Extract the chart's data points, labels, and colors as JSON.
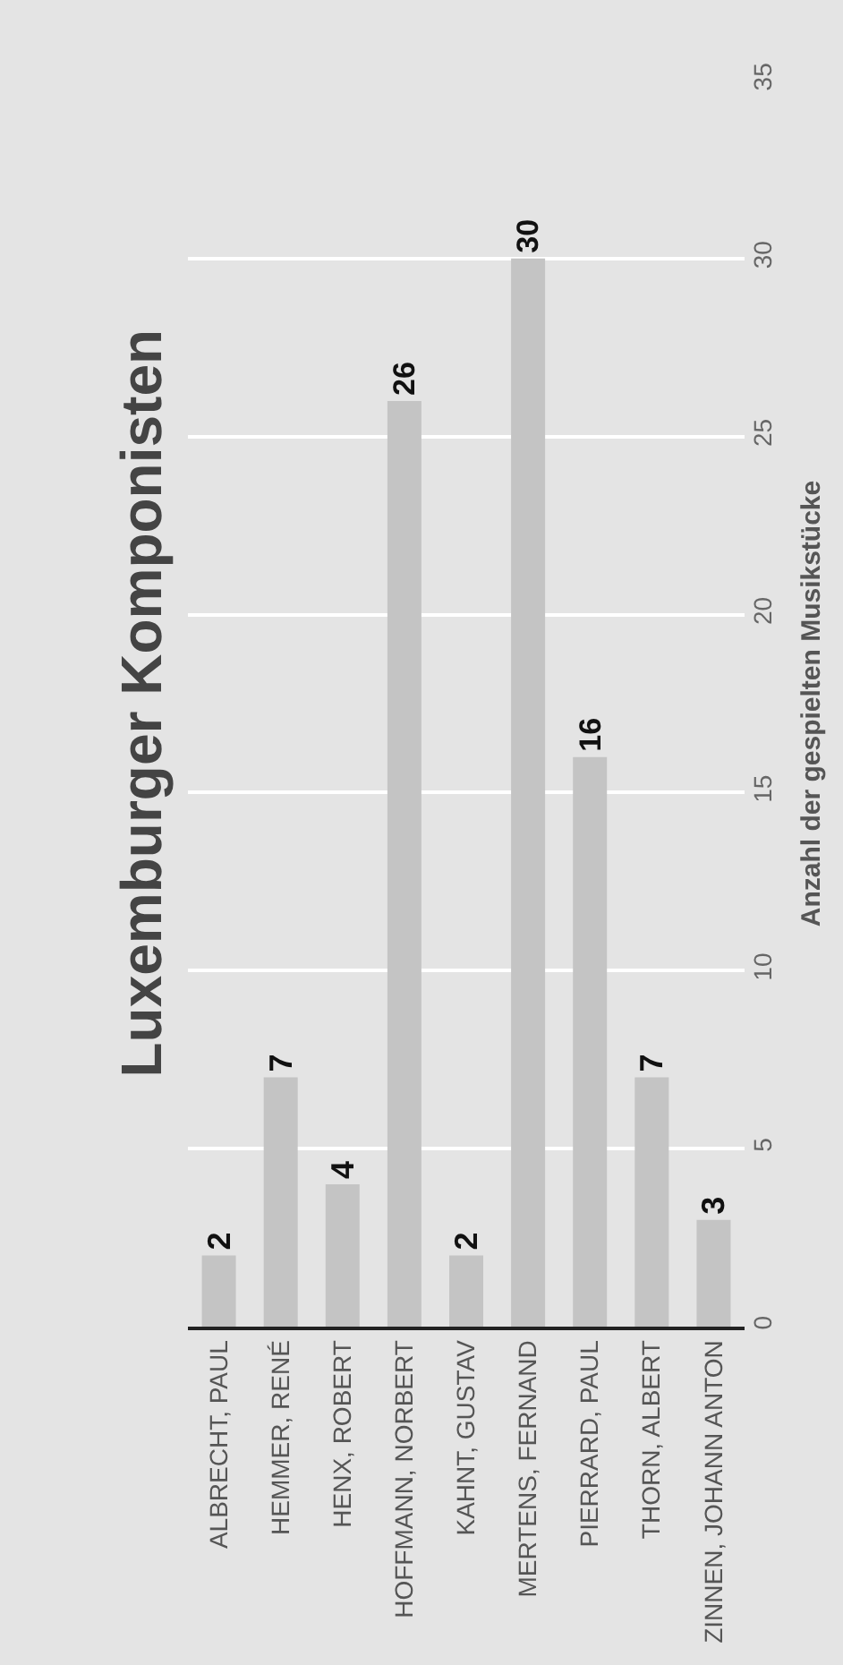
{
  "chart_data": {
    "type": "bar",
    "title": "Luxemburger Komponisten",
    "ylabel": "Anzahl der gespielten Musikstücke",
    "categories": [
      "ALBRECHT, PAUL",
      "HEMMER, RENÉ",
      "HENX, ROBERT",
      "HOFFMANN, NORBERT",
      "KAHNT, GUSTAV",
      "MERTENS, FERNAND",
      "PIERRARD, PAUL",
      "THORN, ALBERT",
      "ZINNEN, JOHANN ANTON"
    ],
    "values": [
      2,
      7,
      4,
      26,
      2,
      30,
      16,
      7,
      3
    ],
    "color": "#c4c4c4",
    "ylim": [
      0,
      35
    ],
    "yticks": [
      0,
      5,
      10,
      15,
      20,
      25,
      30,
      35
    ],
    "grid": "y",
    "data_labels": true
  }
}
